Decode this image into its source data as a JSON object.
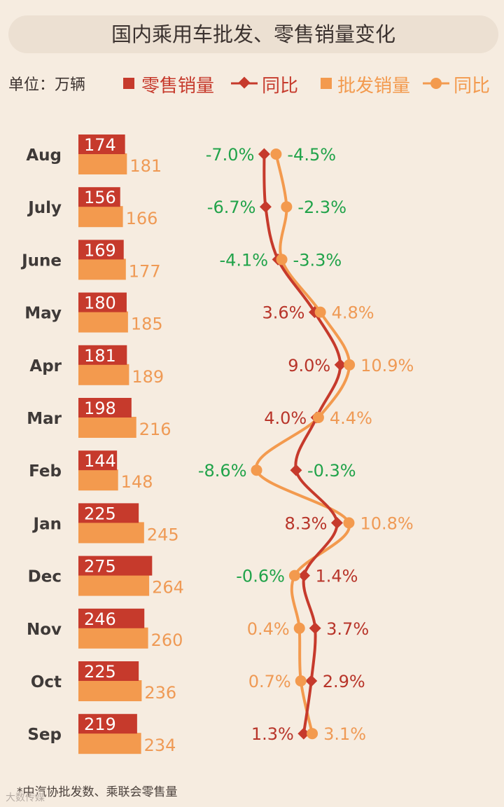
{
  "title": "国内乘用车批发、零售销量变化",
  "unit_label": "单位：万辆",
  "footnote": "*中汽协批发数、乘联会零售量",
  "watermark": "大数传媒",
  "legend": {
    "retail_sales": "零售销量",
    "retail_yoy": "同比",
    "wholesale_sales": "批发销量",
    "wholesale_yoy": "同比"
  },
  "colors": {
    "retail": "#c63a2c",
    "wholesale": "#f39a4e",
    "negative_label": "#21a34a",
    "retail_label": "#b8352a",
    "wholesale_label": "#ef9a55",
    "month_label": "#3f3a38"
  },
  "chart_data": {
    "type": "bar",
    "categories": [
      "Aug",
      "July",
      "June",
      "May",
      "Apr",
      "Mar",
      "Feb",
      "Jan",
      "Dec",
      "Nov",
      "Oct",
      "Sep"
    ],
    "series": [
      {
        "name": "零售销量",
        "values": [
          174,
          156,
          169,
          180,
          181,
          198,
          144,
          225,
          275,
          246,
          225,
          219
        ]
      },
      {
        "name": "批发销量",
        "values": [
          181,
          166,
          177,
          185,
          189,
          216,
          148,
          245,
          264,
          260,
          236,
          234
        ]
      }
    ],
    "yoy_series": [
      {
        "name": "同比",
        "values": [
          -7.0,
          -6.7,
          -4.1,
          3.6,
          9.0,
          4.0,
          -0.3,
          8.3,
          1.4,
          3.7,
          2.9,
          1.3
        ],
        "labels": [
          "-7.0%",
          "-6.7%",
          "-4.1%",
          "3.6%",
          "9.0%",
          "4.0%",
          "-0.3%",
          "8.3%",
          "1.4%",
          "3.7%",
          "2.9%",
          "1.3%"
        ]
      },
      {
        "name": "同比",
        "values": [
          -4.5,
          -2.3,
          -3.3,
          4.8,
          10.9,
          4.4,
          -8.6,
          10.8,
          -0.6,
          0.4,
          0.7,
          3.1
        ],
        "labels": [
          "-4.5%",
          "-2.3%",
          "-3.3%",
          "4.8%",
          "10.9%",
          "4.4%",
          "-8.6%",
          "10.8%",
          "-0.6%",
          "0.4%",
          "0.7%",
          "3.1%"
        ]
      }
    ],
    "orientation": "horizontal",
    "legend_position": "top",
    "grid": false
  }
}
